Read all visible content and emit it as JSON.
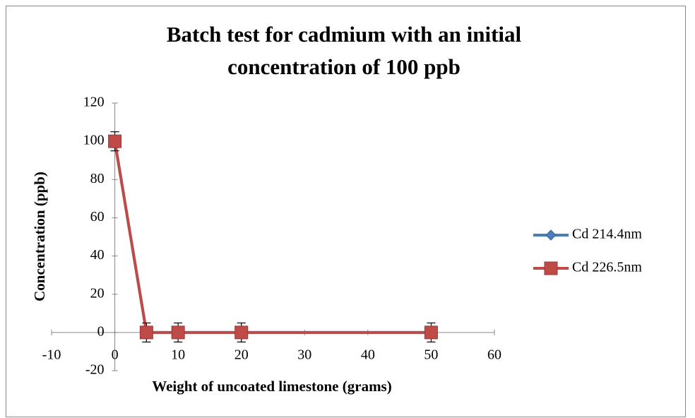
{
  "chart_data": {
    "type": "line",
    "title": [
      "Batch test for cadmium with an initial",
      "concentration of 100 ppb"
    ],
    "x_label": "Weight of uncoated limestone (grams)",
    "y_label": "Concentration (ppb)",
    "x": [
      0,
      5,
      10,
      20,
      50
    ],
    "series": [
      {
        "name": "Cd 214.4nm",
        "color": "#4a7ebb",
        "marker": "diamond",
        "values": [
          100,
          0,
          0,
          0,
          0
        ],
        "errors": [
          5,
          5,
          5,
          5,
          5
        ]
      },
      {
        "name": "Cd 226.5nm",
        "color": "#be4b48",
        "marker": "square",
        "values": [
          100,
          0,
          0,
          0,
          0
        ],
        "errors": [
          5,
          5,
          5,
          5,
          5
        ]
      }
    ],
    "xlim": [
      -10,
      60
    ],
    "xticks": [
      -10,
      0,
      10,
      20,
      30,
      40,
      50,
      60
    ],
    "ylim": [
      -20,
      120
    ],
    "yticks": [
      -20,
      0,
      20,
      40,
      60,
      80,
      100,
      120
    ],
    "grid": false,
    "legend": "right"
  }
}
